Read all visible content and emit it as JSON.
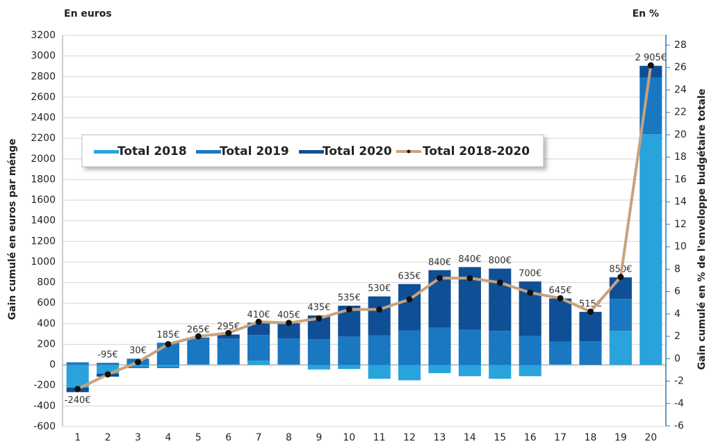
{
  "chart_data": {
    "type": "bar",
    "left_header": "En euros",
    "right_header": "En %",
    "y_label": "Gain cumulé en euros par ménge",
    "y2_label": "Gain cumulé en % de l'enveloppe budgétaire totale",
    "categories": [
      "1",
      "2",
      "3",
      "4",
      "5",
      "6",
      "7",
      "8",
      "9",
      "10",
      "11",
      "12",
      "13",
      "14",
      "15",
      "16",
      "17",
      "18",
      "19",
      "20"
    ],
    "series": [
      {
        "name": "Total 2018",
        "type": "bar",
        "color": "#29a3dc",
        "values": [
          -220,
          -85,
          -20,
          -20,
          5,
          5,
          40,
          5,
          -45,
          -40,
          -135,
          -150,
          -80,
          -110,
          -135,
          -110,
          5,
          0,
          330,
          2240
        ]
      },
      {
        "name": "Total 2019",
        "type": "bar",
        "color": "#1a78c2",
        "values": [
          25,
          20,
          60,
          215,
          250,
          250,
          250,
          250,
          250,
          275,
          285,
          335,
          360,
          340,
          330,
          280,
          220,
          230,
          310,
          550
        ]
      },
      {
        "name": "Total 2020",
        "type": "bar",
        "color": "#0f4f96",
        "values": [
          -45,
          -30,
          -10,
          -10,
          10,
          40,
          120,
          150,
          230,
          300,
          380,
          450,
          560,
          610,
          605,
          530,
          420,
          285,
          210,
          115
        ]
      },
      {
        "name": "Total 2018-2020",
        "type": "line",
        "axis": "y2",
        "color": "#c8a27c",
        "values": [
          -2.7,
          -1.4,
          -0.3,
          1.3,
          2.0,
          2.3,
          3.3,
          3.2,
          3.6,
          4.4,
          4.4,
          5.3,
          7.2,
          7.2,
          6.8,
          5.9,
          5.4,
          4.2,
          7.3,
          26.2
        ]
      }
    ],
    "totals": {
      "values": [
        -240,
        -95,
        30,
        185,
        265,
        295,
        410,
        405,
        435,
        535,
        530,
        635,
        840,
        840,
        800,
        700,
        645,
        515,
        850,
        2905
      ],
      "value_labels": [
        "-240€",
        "-95€",
        "30€",
        "185€",
        "265€",
        "295€",
        "410€",
        "405€",
        "435€",
        "535€",
        "530€",
        "635€",
        "840€",
        "840€",
        "800€",
        "700€",
        "645€",
        "515€",
        "850€",
        "2 905€"
      ]
    },
    "ylim": [
      -600,
      3200
    ],
    "yticks": [
      -600,
      -400,
      -200,
      0,
      200,
      400,
      600,
      800,
      1000,
      1200,
      1400,
      1600,
      1800,
      2000,
      2200,
      2400,
      2600,
      2800,
      3000,
      3200
    ],
    "y2lim": [
      -6,
      28
    ],
    "y2ticks": [
      -6,
      -4,
      -2,
      0,
      2,
      4,
      6,
      8,
      10,
      12,
      14,
      16,
      18,
      20,
      22,
      24,
      26,
      28
    ],
    "grid": true
  }
}
